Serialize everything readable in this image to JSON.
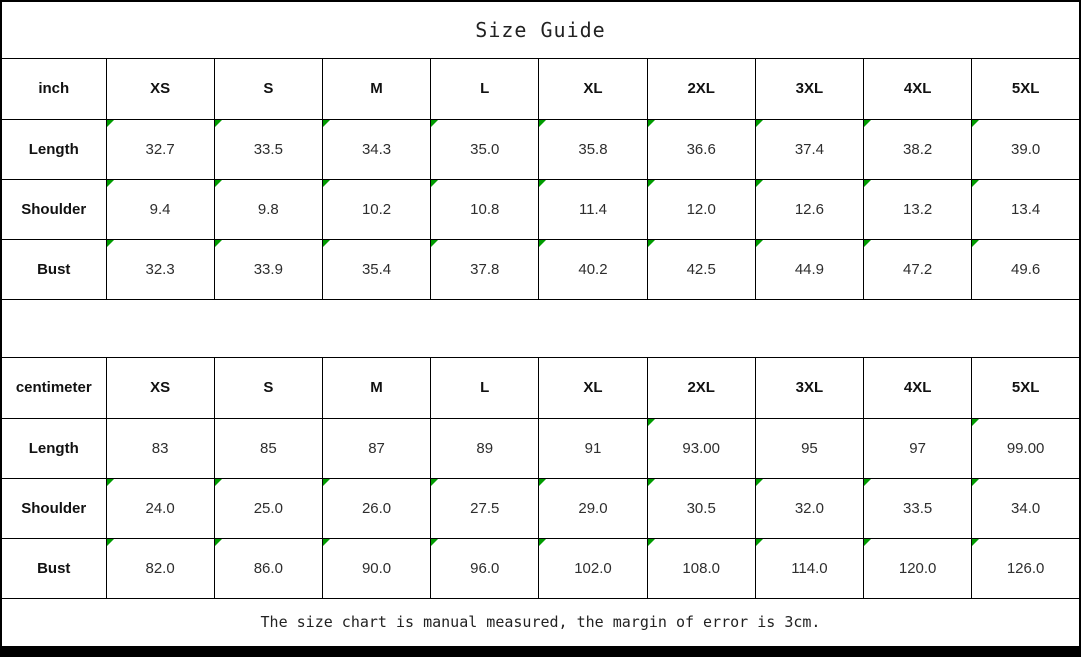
{
  "title": "Size Guide",
  "footer_note": "The size chart is manual measured, the margin of error is 3cm.",
  "colors": {
    "border": "#000000",
    "mark_green": "#009b00",
    "bottom_bar": "#000000"
  },
  "chart_data": [
    {
      "type": "table",
      "unit": "inch",
      "sizes": [
        "XS",
        "S",
        "M",
        "L",
        "XL",
        "2XL",
        "3XL",
        "4XL",
        "5XL"
      ],
      "rows": [
        {
          "label": "Length",
          "values": [
            "32.7",
            "33.5",
            "34.3",
            "35.0",
            "35.8",
            "36.6",
            "37.4",
            "38.2",
            "39.0"
          ],
          "marks": [
            true,
            true,
            true,
            true,
            true,
            true,
            true,
            true,
            true
          ]
        },
        {
          "label": "Shoulder",
          "values": [
            "9.4",
            "9.8",
            "10.2",
            "10.8",
            "11.4",
            "12.0",
            "12.6",
            "13.2",
            "13.4"
          ],
          "marks": [
            true,
            true,
            true,
            true,
            true,
            true,
            true,
            true,
            true
          ]
        },
        {
          "label": "Bust",
          "values": [
            "32.3",
            "33.9",
            "35.4",
            "37.8",
            "40.2",
            "42.5",
            "44.9",
            "47.2",
            "49.6"
          ],
          "marks": [
            true,
            true,
            true,
            true,
            true,
            true,
            true,
            true,
            true
          ]
        }
      ]
    },
    {
      "type": "table",
      "unit": "centimeter",
      "sizes": [
        "XS",
        "S",
        "M",
        "L",
        "XL",
        "2XL",
        "3XL",
        "4XL",
        "5XL"
      ],
      "rows": [
        {
          "label": "Length",
          "values": [
            "83",
            "85",
            "87",
            "89",
            "91",
            "93.00",
            "95",
            "97",
            "99.00"
          ],
          "marks": [
            false,
            false,
            false,
            false,
            false,
            true,
            false,
            false,
            true
          ]
        },
        {
          "label": "Shoulder",
          "values": [
            "24.0",
            "25.0",
            "26.0",
            "27.5",
            "29.0",
            "30.5",
            "32.0",
            "33.5",
            "34.0"
          ],
          "marks": [
            true,
            true,
            true,
            true,
            true,
            true,
            true,
            true,
            true
          ]
        },
        {
          "label": "Bust",
          "values": [
            "82.0",
            "86.0",
            "90.0",
            "96.0",
            "102.0",
            "108.0",
            "114.0",
            "120.0",
            "126.0"
          ],
          "marks": [
            true,
            true,
            true,
            true,
            true,
            true,
            true,
            true,
            true
          ]
        }
      ]
    }
  ]
}
